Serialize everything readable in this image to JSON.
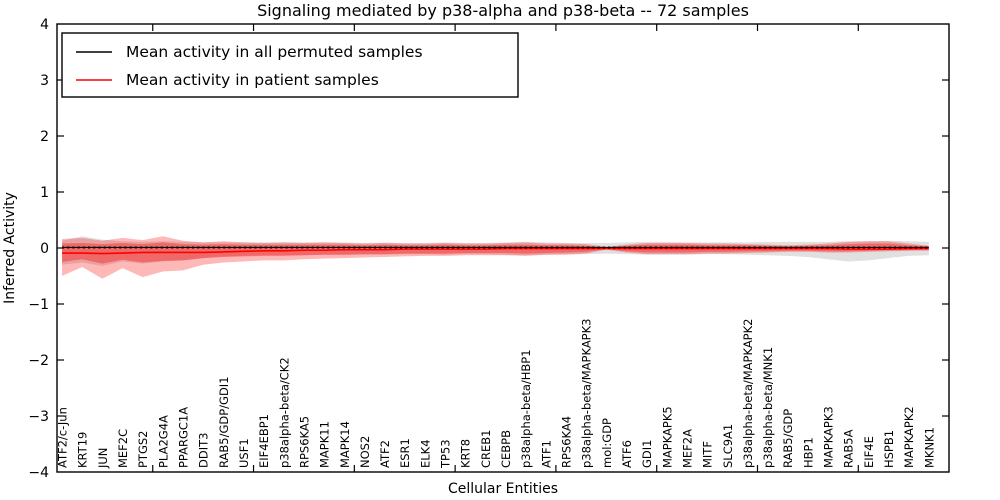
{
  "figure": {
    "title": "Signaling mediated by p38-alpha and p38-beta -- 72 samples"
  },
  "legend": {
    "position": "upper left",
    "entries": [
      {
        "label": "Mean activity in all permuted samples",
        "color": "#000000"
      },
      {
        "label": "Mean activity in patient samples",
        "color": "#ff0000"
      }
    ]
  },
  "axes": {
    "xlabel": "Cellular Entities",
    "ylabel": "Inferred Activity",
    "ytick_labels": [
      "4",
      "3",
      "2",
      "1",
      "0",
      "−1",
      "−2",
      "−3",
      "−4"
    ],
    "ytick_values": [
      4,
      3,
      2,
      1,
      0,
      -1,
      -2,
      -3,
      -4
    ]
  },
  "chart_data": {
    "type": "line",
    "title": "Signaling mediated by p38-alpha and p38-beta -- 72 samples",
    "xlabel": "Cellular Entities",
    "ylabel": "Inferred Activity",
    "ylim": [
      -4,
      4
    ],
    "grid": false,
    "legend_position": "upper left",
    "x_major_tick_values": [
      4.5,
      9.5,
      14.5,
      19.5,
      24.5,
      29.5,
      34.5,
      39.5
    ],
    "categories": [
      "ATF2/c-Jun",
      "KRT19",
      "JUN",
      "MEF2C",
      "PTGS2",
      "PLA2G4A",
      "PPARGC1A",
      "DDIT3",
      "RAB5/GDP/GDI1",
      "USF1",
      "EIF4EBP1",
      "p38alpha-beta/CK2",
      "RPS6KA5",
      "MAPK11",
      "MAPK14",
      "NOS2",
      "ATF2",
      "ESR1",
      "ELK4",
      "TP53",
      "KRT8",
      "CREB1",
      "CEBPB",
      "p38alpha-beta/HBP1",
      "ATF1",
      "RPS6KA4",
      "p38alpha-beta/MAPKAPK3",
      "mol:GDP",
      "ATF6",
      "GDI1",
      "MAPKAPK5",
      "MEF2A",
      "MITF",
      "SLC9A1",
      "p38alpha-beta/MAPKAPK2",
      "p38alpha-beta/MNK1",
      "RAB5/GDP",
      "HBP1",
      "MAPKAPK3",
      "RAB5A",
      "EIF4E",
      "HSPB1",
      "MAPKAPK2",
      "MKNK1"
    ],
    "series": [
      {
        "name": "Mean activity in all permuted samples",
        "color": "#000000",
        "line_style": "solid-with-dotted-overlay",
        "values": [
          0.01,
          0.01,
          0.01,
          0.01,
          0.01,
          0.01,
          0.01,
          0.01,
          0.01,
          0.01,
          0.01,
          0.01,
          0.01,
          0.01,
          0.01,
          0.01,
          0.01,
          0.01,
          0.01,
          0.01,
          0.01,
          0.01,
          0.01,
          0.01,
          0.01,
          0.01,
          0.01,
          0.01,
          0.01,
          0.01,
          0.01,
          0.01,
          0.01,
          0.01,
          0.01,
          0.01,
          0.01,
          0.01,
          0.01,
          0.01,
          0.01,
          0.01,
          0.01,
          0.01
        ]
      },
      {
        "name": "Mean activity in patient samples",
        "color": "#ff0000",
        "line_style": "solid",
        "values": [
          -0.09,
          -0.09,
          -0.1,
          -0.09,
          -0.08,
          -0.08,
          -0.08,
          -0.08,
          -0.07,
          -0.06,
          -0.05,
          -0.05,
          -0.04,
          -0.04,
          -0.03,
          -0.03,
          -0.03,
          -0.02,
          -0.02,
          -0.02,
          -0.02,
          -0.02,
          -0.01,
          -0.01,
          -0.01,
          -0.01,
          -0.01,
          -0.01,
          -0.01,
          -0.01,
          -0.01,
          -0.01,
          -0.01,
          -0.01,
          -0.01,
          -0.01,
          -0.01,
          -0.01,
          -0.01,
          -0.02,
          -0.02,
          -0.02,
          -0.01,
          -0.01
        ]
      }
    ],
    "bands": [
      {
        "name": "permuted-samples-range",
        "fill": "rgba(0,0,0,0.12)",
        "upper": [
          0.13,
          0.21,
          0.15,
          0.12,
          0.11,
          0.12,
          0.11,
          0.1,
          0.1,
          0.1,
          0.1,
          0.1,
          0.1,
          0.1,
          0.1,
          0.09,
          0.1,
          0.09,
          0.09,
          0.1,
          0.09,
          0.09,
          0.1,
          0.11,
          0.1,
          0.09,
          0.09,
          0.09,
          0.1,
          0.11,
          0.11,
          0.1,
          0.1,
          0.1,
          0.1,
          0.11,
          0.11,
          0.11,
          0.11,
          0.12,
          0.12,
          0.13,
          0.12,
          0.11
        ],
        "lower": [
          -0.3,
          -0.26,
          -0.32,
          -0.24,
          -0.28,
          -0.24,
          -0.22,
          -0.18,
          -0.15,
          -0.14,
          -0.13,
          -0.13,
          -0.13,
          -0.12,
          -0.12,
          -0.12,
          -0.12,
          -0.11,
          -0.11,
          -0.12,
          -0.11,
          -0.11,
          -0.12,
          -0.13,
          -0.12,
          -0.11,
          -0.11,
          -0.1,
          -0.11,
          -0.12,
          -0.12,
          -0.12,
          -0.11,
          -0.11,
          -0.12,
          -0.13,
          -0.14,
          -0.16,
          -0.2,
          -0.24,
          -0.22,
          -0.18,
          -0.14,
          -0.13
        ]
      },
      {
        "name": "patient-samples-range-outer",
        "fill": "rgba(255,0,0,0.28)",
        "upper": [
          0.16,
          0.18,
          0.13,
          0.18,
          0.14,
          0.21,
          0.13,
          0.1,
          0.12,
          0.1,
          0.09,
          0.1,
          0.09,
          0.1,
          0.09,
          0.08,
          0.09,
          0.08,
          0.08,
          0.09,
          0.08,
          0.08,
          0.09,
          0.1,
          0.08,
          0.08,
          0.07,
          0.02,
          0.06,
          0.09,
          0.09,
          0.09,
          0.08,
          0.08,
          0.07,
          0.06,
          0.05,
          0.06,
          0.08,
          0.11,
          0.12,
          0.12,
          0.08,
          0.04
        ],
        "lower": [
          -0.5,
          -0.34,
          -0.55,
          -0.36,
          -0.52,
          -0.42,
          -0.4,
          -0.3,
          -0.26,
          -0.24,
          -0.22,
          -0.22,
          -0.2,
          -0.19,
          -0.18,
          -0.17,
          -0.16,
          -0.15,
          -0.14,
          -0.14,
          -0.13,
          -0.13,
          -0.13,
          -0.14,
          -0.12,
          -0.12,
          -0.1,
          -0.03,
          -0.08,
          -0.11,
          -0.11,
          -0.11,
          -0.1,
          -0.1,
          -0.09,
          -0.08,
          -0.07,
          -0.07,
          -0.08,
          -0.08,
          -0.07,
          -0.06,
          -0.05,
          -0.05
        ]
      },
      {
        "name": "patient-samples-range-inner",
        "fill": "rgba(255,0,0,0.35)",
        "upper": [
          0.08,
          0.09,
          0.07,
          0.09,
          0.07,
          0.1,
          0.07,
          0.06,
          0.07,
          0.06,
          0.06,
          0.06,
          0.06,
          0.06,
          0.06,
          0.05,
          0.06,
          0.05,
          0.05,
          0.06,
          0.05,
          0.05,
          0.06,
          0.06,
          0.05,
          0.05,
          0.04,
          0.01,
          0.04,
          0.06,
          0.06,
          0.06,
          0.05,
          0.05,
          0.05,
          0.04,
          0.03,
          0.04,
          0.05,
          0.07,
          0.08,
          0.08,
          0.05,
          0.03
        ],
        "lower": [
          -0.25,
          -0.2,
          -0.28,
          -0.21,
          -0.26,
          -0.23,
          -0.22,
          -0.18,
          -0.16,
          -0.15,
          -0.14,
          -0.14,
          -0.13,
          -0.12,
          -0.12,
          -0.11,
          -0.11,
          -0.1,
          -0.1,
          -0.1,
          -0.09,
          -0.09,
          -0.09,
          -0.1,
          -0.09,
          -0.08,
          -0.07,
          -0.02,
          -0.06,
          -0.08,
          -0.08,
          -0.08,
          -0.07,
          -0.07,
          -0.06,
          -0.06,
          -0.05,
          -0.05,
          -0.06,
          -0.06,
          -0.05,
          -0.04,
          -0.04,
          -0.03
        ]
      }
    ]
  }
}
